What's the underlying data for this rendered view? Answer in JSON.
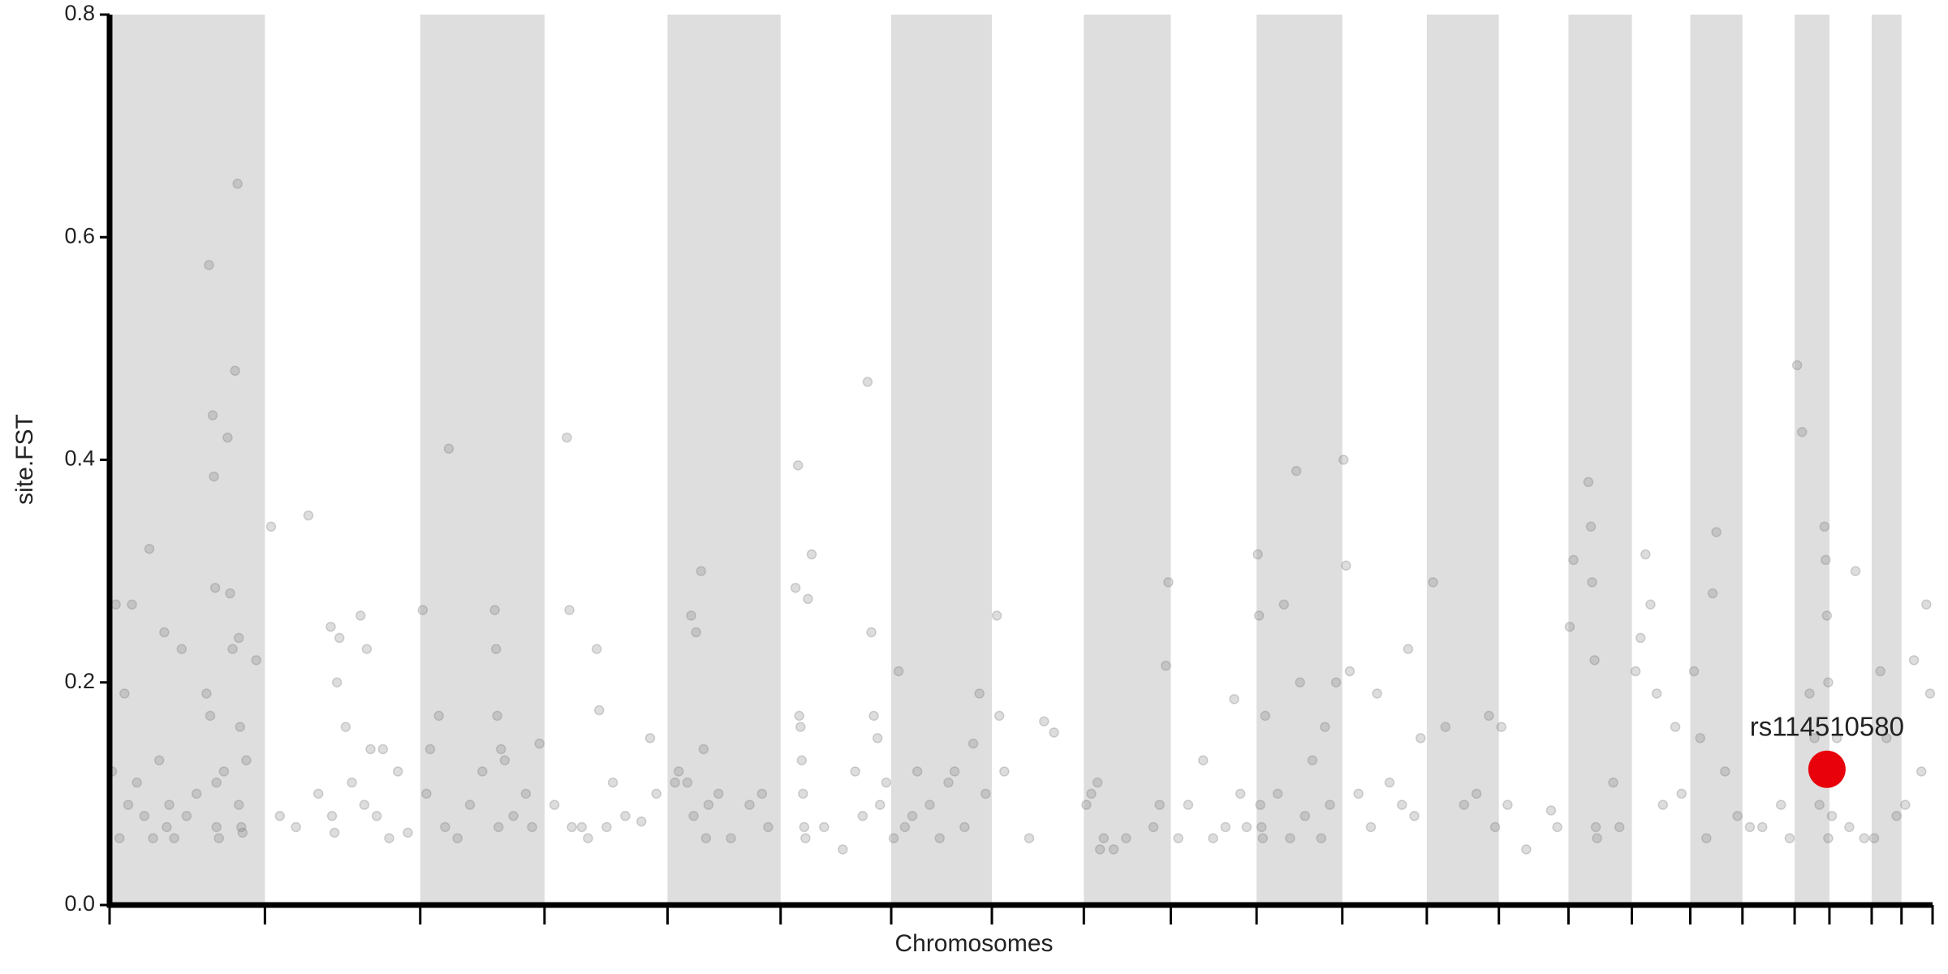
{
  "chart_data": {
    "type": "scatter",
    "xlabel": "Chromosomes",
    "ylabel": "site.FST",
    "xlim": [
      0,
      1467
    ],
    "ylim": [
      0,
      0.8
    ],
    "xticks": [
      0,
      125,
      250,
      350,
      449,
      540,
      629,
      710,
      784,
      854,
      923,
      992,
      1060,
      1118,
      1174,
      1225,
      1272,
      1314,
      1356,
      1384,
      1418,
      1442,
      1467
    ],
    "yticks": [
      {
        "value": 0,
        "label": "0.0"
      },
      0.2,
      0.4,
      0.6,
      0.8
    ],
    "band_color": "#dedede",
    "color": "#777777",
    "x": [
      2,
      5,
      8,
      12,
      15,
      18,
      22,
      28,
      32,
      35,
      40,
      44,
      46,
      48,
      52,
      58,
      62,
      70,
      78,
      80,
      81,
      83,
      84,
      85,
      86,
      88,
      92,
      95,
      97,
      99,
      101,
      103,
      104,
      105,
      106,
      107,
      110,
      118,
      104,
      86,
      130,
      137,
      150,
      160,
      168,
      178,
      179,
      181,
      183,
      185,
      190,
      195,
      202,
      205,
      207,
      210,
      215,
      220,
      225,
      232,
      240,
      252,
      255,
      258,
      265,
      270,
      273,
      280,
      290,
      300,
      310,
      311,
      312,
      313,
      315,
      318,
      325,
      335,
      340,
      346,
      358,
      368,
      370,
      372,
      380,
      385,
      392,
      394,
      400,
      405,
      415,
      428,
      435,
      440,
      455,
      458,
      465,
      468,
      470,
      472,
      476,
      478,
      480,
      482,
      490,
      500,
      515,
      525,
      530,
      552,
      554,
      555,
      556,
      557,
      558,
      559,
      560,
      562,
      565,
      575,
      590,
      600,
      606,
      610,
      613,
      615,
      618,
      620,
      625,
      631,
      635,
      640,
      646,
      650,
      660,
      668,
      675,
      680,
      688,
      695,
      700,
      705,
      714,
      716,
      720,
      740,
      752,
      760,
      786,
      790,
      795,
      797,
      800,
      808,
      818,
      840,
      845,
      850,
      852,
      860,
      868,
      880,
      888,
      898,
      905,
      910,
      915,
      924,
      925,
      926,
      927,
      928,
      930,
      940,
      945,
      950,
      955,
      958,
      962,
      968,
      975,
      978,
      982,
      987,
      993,
      995,
      998,
      1005,
      1015,
      1020,
      1030,
      1040,
      1045,
      1050,
      1055,
      1065,
      1075,
      1090,
      1100,
      1110,
      1115,
      1120,
      1125,
      1140,
      1160,
      1165,
      1175,
      1178,
      1190,
      1192,
      1193,
      1195,
      1196,
      1197,
      1210,
      1215,
      1228,
      1232,
      1236,
      1240,
      1245,
      1250,
      1260,
      1265,
      1275,
      1280,
      1285,
      1290,
      1293,
      1300,
      1310,
      1320,
      1330,
      1345,
      1352,
      1358,
      1362,
      1368,
      1372,
      1376,
      1380,
      1381,
      1382,
      1383,
      1383,
      1386,
      1390,
      1400,
      1405,
      1412,
      1420,
      1425,
      1430,
      1438,
      1445,
      1452,
      1458,
      1462,
      1465
    ],
    "values": [
      0.12,
      0.27,
      0.06,
      0.19,
      0.09,
      0.27,
      0.11,
      0.08,
      0.32,
      0.06,
      0.13,
      0.245,
      0.07,
      0.09,
      0.06,
      0.23,
      0.08,
      0.1,
      0.19,
      0.575,
      0.17,
      0.44,
      0.385,
      0.285,
      0.11,
      0.06,
      0.12,
      0.42,
      0.28,
      0.23,
      0.48,
      0.648,
      0.24,
      0.16,
      0.07,
      0.065,
      0.13,
      0.22,
      0.09,
      0.07,
      0.34,
      0.08,
      0.07,
      0.35,
      0.1,
      0.25,
      0.08,
      0.065,
      0.2,
      0.24,
      0.16,
      0.11,
      0.26,
      0.09,
      0.23,
      0.14,
      0.08,
      0.14,
      0.06,
      0.12,
      0.065,
      0.265,
      0.1,
      0.14,
      0.17,
      0.07,
      0.41,
      0.06,
      0.09,
      0.12,
      0.265,
      0.23,
      0.17,
      0.07,
      0.14,
      0.13,
      0.08,
      0.1,
      0.07,
      0.145,
      0.09,
      0.42,
      0.265,
      0.07,
      0.07,
      0.06,
      0.23,
      0.175,
      0.07,
      0.11,
      0.08,
      0.075,
      0.15,
      0.1,
      0.11,
      0.12,
      0.11,
      0.26,
      0.08,
      0.245,
      0.3,
      0.14,
      0.06,
      0.09,
      0.1,
      0.06,
      0.09,
      0.1,
      0.07,
      0.285,
      0.395,
      0.17,
      0.16,
      0.13,
      0.1,
      0.07,
      0.06,
      0.275,
      0.315,
      0.07,
      0.05,
      0.12,
      0.08,
      0.47,
      0.245,
      0.17,
      0.15,
      0.09,
      0.11,
      0.06,
      0.21,
      0.07,
      0.08,
      0.12,
      0.09,
      0.06,
      0.11,
      0.12,
      0.07,
      0.145,
      0.19,
      0.1,
      0.26,
      0.17,
      0.12,
      0.06,
      0.165,
      0.155,
      0.09,
      0.1,
      0.11,
      0.05,
      0.06,
      0.05,
      0.06,
      0.07,
      0.09,
      0.215,
      0.29,
      0.06,
      0.09,
      0.13,
      0.06,
      0.07,
      0.185,
      0.1,
      0.07,
      0.315,
      0.26,
      0.09,
      0.07,
      0.06,
      0.17,
      0.1,
      0.27,
      0.06,
      0.39,
      0.2,
      0.08,
      0.13,
      0.06,
      0.16,
      0.09,
      0.2,
      0.4,
      0.305,
      0.21,
      0.1,
      0.07,
      0.19,
      0.11,
      0.09,
      0.23,
      0.08,
      0.15,
      0.29,
      0.16,
      0.09,
      0.1,
      0.17,
      0.07,
      0.16,
      0.09,
      0.05,
      0.085,
      0.07,
      0.25,
      0.31,
      0.38,
      0.34,
      0.29,
      0.22,
      0.07,
      0.06,
      0.11,
      0.07,
      0.21,
      0.24,
      0.315,
      0.27,
      0.19,
      0.09,
      0.16,
      0.1,
      0.21,
      0.15,
      0.06,
      0.28,
      0.335,
      0.12,
      0.08,
      0.07,
      0.07,
      0.09,
      0.06,
      0.485,
      0.425,
      0.19,
      0.15,
      0.09,
      0.34,
      0.31,
      0.26,
      0.2,
      0.06,
      0.08,
      0.15,
      0.07,
      0.3,
      0.06,
      0.06,
      0.21,
      0.15,
      0.08,
      0.09,
      0.22,
      0.12,
      0.27,
      0.19
    ],
    "highlight": {
      "label": "rs114510580",
      "x": 1382,
      "y": 0.122,
      "color": "#e8000b"
    }
  }
}
